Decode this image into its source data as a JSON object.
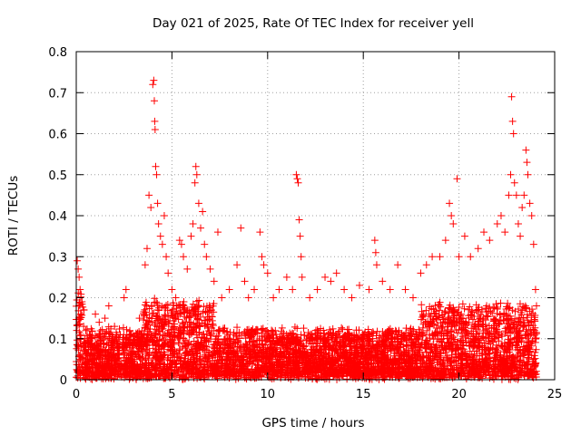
{
  "chart_data": {
    "type": "scatter",
    "title": "Day 021 of 2025, Rate Of TEC Index for receiver yell",
    "xlabel": "GPS time / hours",
    "ylabel": "ROTI / TECUs",
    "xlim": [
      0,
      25
    ],
    "ylim": [
      0,
      0.8
    ],
    "x_ticks": [
      "0",
      "5",
      "10",
      "15",
      "20",
      "25"
    ],
    "y_ticks": [
      "0",
      "0.1",
      "0.2",
      "0.3",
      "0.4",
      "0.5",
      "0.6",
      "0.7",
      "0.8"
    ],
    "grid": true,
    "marker": "plus",
    "color": "#ff0000",
    "points": [
      [
        0.05,
        0.29
      ],
      [
        0.1,
        0.27
      ],
      [
        0.15,
        0.25
      ],
      [
        0.2,
        0.22
      ],
      [
        0.3,
        0.19
      ],
      [
        0.4,
        0.17
      ],
      [
        0.2,
        0.05
      ],
      [
        0.5,
        0.12
      ],
      [
        0.8,
        0.1
      ],
      [
        1.0,
        0.16
      ],
      [
        1.2,
        0.14
      ],
      [
        1.5,
        0.15
      ],
      [
        1.7,
        0.18
      ],
      [
        2.0,
        0.13
      ],
      [
        2.3,
        0.11
      ],
      [
        2.5,
        0.2
      ],
      [
        2.6,
        0.22
      ],
      [
        2.8,
        0.12
      ],
      [
        3.0,
        0.07
      ],
      [
        3.3,
        0.15
      ],
      [
        3.6,
        0.28
      ],
      [
        3.7,
        0.32
      ],
      [
        3.8,
        0.45
      ],
      [
        3.9,
        0.42
      ],
      [
        4.0,
        0.72
      ],
      [
        4.05,
        0.73
      ],
      [
        4.08,
        0.68
      ],
      [
        4.1,
        0.63
      ],
      [
        4.12,
        0.61
      ],
      [
        4.15,
        0.52
      ],
      [
        4.2,
        0.5
      ],
      [
        4.25,
        0.43
      ],
      [
        4.3,
        0.38
      ],
      [
        4.4,
        0.35
      ],
      [
        4.5,
        0.33
      ],
      [
        4.6,
        0.4
      ],
      [
        4.7,
        0.3
      ],
      [
        4.8,
        0.26
      ],
      [
        5.0,
        0.22
      ],
      [
        5.2,
        0.2
      ],
      [
        5.4,
        0.34
      ],
      [
        5.5,
        0.33
      ],
      [
        5.6,
        0.3
      ],
      [
        5.8,
        0.27
      ],
      [
        6.0,
        0.35
      ],
      [
        6.1,
        0.38
      ],
      [
        6.2,
        0.48
      ],
      [
        6.25,
        0.52
      ],
      [
        6.3,
        0.5
      ],
      [
        6.4,
        0.43
      ],
      [
        6.5,
        0.37
      ],
      [
        6.6,
        0.41
      ],
      [
        6.7,
        0.33
      ],
      [
        6.8,
        0.3
      ],
      [
        7.0,
        0.27
      ],
      [
        7.2,
        0.24
      ],
      [
        7.4,
        0.36
      ],
      [
        7.6,
        0.2
      ],
      [
        8.0,
        0.22
      ],
      [
        8.4,
        0.28
      ],
      [
        8.6,
        0.37
      ],
      [
        8.8,
        0.24
      ],
      [
        9.0,
        0.2
      ],
      [
        9.3,
        0.22
      ],
      [
        9.6,
        0.36
      ],
      [
        9.7,
        0.3
      ],
      [
        9.8,
        0.28
      ],
      [
        10.0,
        0.26
      ],
      [
        10.3,
        0.2
      ],
      [
        10.6,
        0.22
      ],
      [
        11.0,
        0.25
      ],
      [
        11.3,
        0.22
      ],
      [
        11.5,
        0.5
      ],
      [
        11.55,
        0.49
      ],
      [
        11.6,
        0.48
      ],
      [
        11.65,
        0.39
      ],
      [
        11.7,
        0.35
      ],
      [
        11.75,
        0.3
      ],
      [
        11.8,
        0.25
      ],
      [
        12.2,
        0.2
      ],
      [
        12.6,
        0.22
      ],
      [
        13.0,
        0.25
      ],
      [
        13.3,
        0.24
      ],
      [
        13.6,
        0.26
      ],
      [
        14.0,
        0.22
      ],
      [
        14.4,
        0.2
      ],
      [
        14.8,
        0.23
      ],
      [
        15.3,
        0.22
      ],
      [
        15.6,
        0.34
      ],
      [
        15.65,
        0.31
      ],
      [
        15.7,
        0.28
      ],
      [
        16.0,
        0.24
      ],
      [
        16.4,
        0.22
      ],
      [
        16.8,
        0.28
      ],
      [
        17.2,
        0.22
      ],
      [
        17.6,
        0.2
      ],
      [
        18.0,
        0.26
      ],
      [
        18.3,
        0.28
      ],
      [
        18.6,
        0.3
      ],
      [
        19.0,
        0.3
      ],
      [
        19.3,
        0.34
      ],
      [
        19.5,
        0.43
      ],
      [
        19.6,
        0.4
      ],
      [
        19.7,
        0.38
      ],
      [
        19.9,
        0.49
      ],
      [
        20.0,
        0.3
      ],
      [
        20.3,
        0.35
      ],
      [
        20.6,
        0.3
      ],
      [
        21.0,
        0.32
      ],
      [
        21.3,
        0.36
      ],
      [
        21.6,
        0.34
      ],
      [
        22.0,
        0.38
      ],
      [
        22.2,
        0.4
      ],
      [
        22.4,
        0.36
      ],
      [
        22.6,
        0.45
      ],
      [
        22.7,
        0.5
      ],
      [
        22.75,
        0.69
      ],
      [
        22.8,
        0.63
      ],
      [
        22.85,
        0.6
      ],
      [
        22.9,
        0.48
      ],
      [
        23.0,
        0.45
      ],
      [
        23.1,
        0.38
      ],
      [
        23.2,
        0.35
      ],
      [
        23.3,
        0.42
      ],
      [
        23.4,
        0.45
      ],
      [
        23.5,
        0.56
      ],
      [
        23.55,
        0.53
      ],
      [
        23.6,
        0.5
      ],
      [
        23.7,
        0.43
      ],
      [
        23.8,
        0.4
      ],
      [
        23.9,
        0.33
      ],
      [
        24.0,
        0.22
      ],
      [
        24.05,
        0.18
      ],
      [
        23.95,
        0.12
      ],
      [
        0.6,
        0.03
      ],
      [
        2.0,
        0.02
      ],
      [
        6.0,
        0.02
      ],
      [
        10.0,
        0.02
      ],
      [
        15.0,
        0.03
      ],
      [
        20.0,
        0.02
      ]
    ]
  }
}
